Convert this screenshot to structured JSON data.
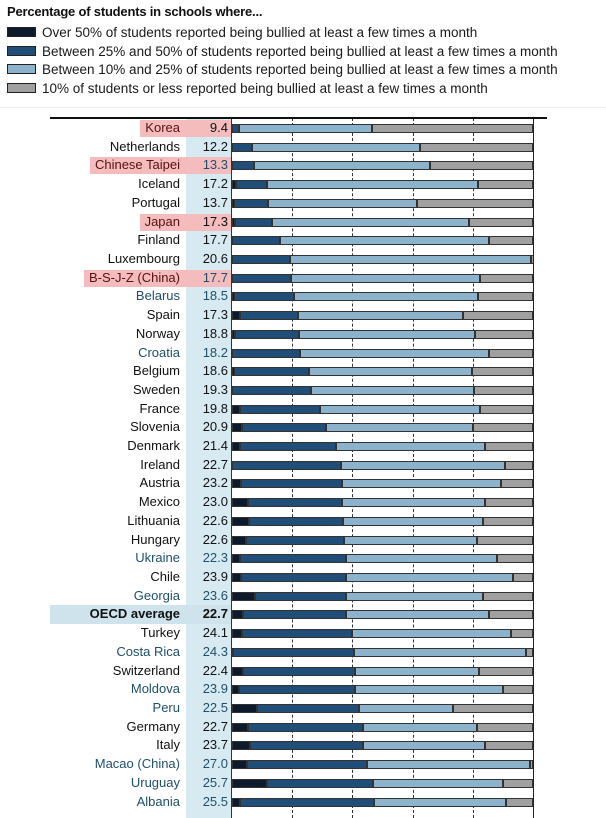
{
  "chart_data": {
    "type": "bar",
    "orientation": "horizontal",
    "stacked": true,
    "title": "Percentage of students in schools where...",
    "xlim": [
      0,
      100
    ],
    "grid": "vertical dashed at 20, 40, 60, 80",
    "legend_position": "top",
    "colors": {
      "over50": "#0c1a2c",
      "b25_50": "#214e78",
      "b10_25": "#8db2cb",
      "le10": "#a0a0a0"
    },
    "series_names": [
      "Over 50% of students reported being bullied at least a few times a month",
      "Between 25% and 50% of students reported being bullied at least a few times a month",
      "Between 10% and 25% of students reported being bullied at least a few times a month",
      "10% of students or less reported being bullied at least a few times a month"
    ],
    "rows": [
      {
        "label": "Korea",
        "value": "9.4",
        "highlight": "red",
        "partner": false,
        "segments": [
          0,
          2.2,
          44.2,
          53.6
        ]
      },
      {
        "label": "Netherlands",
        "value": "12.2",
        "highlight": "",
        "partner": false,
        "segments": [
          0,
          6.7,
          55.6,
          37.7
        ]
      },
      {
        "label": "Chinese Taipei",
        "value": "13.3",
        "highlight": "red",
        "partner": true,
        "segments": [
          0,
          7.4,
          58.3,
          34.3
        ]
      },
      {
        "label": "Iceland",
        "value": "17.2",
        "highlight": "",
        "partner": false,
        "segments": [
          1.2,
          10.5,
          69.9,
          18.4
        ]
      },
      {
        "label": "Portugal",
        "value": "13.7",
        "highlight": "",
        "partner": false,
        "segments": [
          0.7,
          11.4,
          49.5,
          38.4
        ]
      },
      {
        "label": "Japan",
        "value": "17.3",
        "highlight": "red",
        "partner": false,
        "segments": [
          1.1,
          12.1,
          65.6,
          21.2
        ]
      },
      {
        "label": "Finland",
        "value": "17.7",
        "highlight": "",
        "partner": false,
        "segments": [
          0,
          16.0,
          69.3,
          14.7
        ]
      },
      {
        "label": "Luxembourg",
        "value": "20.6",
        "highlight": "",
        "partner": false,
        "segments": [
          0,
          19.4,
          80.0,
          0.6
        ]
      },
      {
        "label": "B-S-J-Z (China)",
        "value": "17.7",
        "highlight": "red",
        "partner": true,
        "segments": [
          0,
          19.5,
          63.0,
          17.5
        ]
      },
      {
        "label": "Belarus",
        "value": "18.5",
        "highlight": "",
        "partner": true,
        "segments": [
          0.6,
          20.1,
          60.9,
          18.4
        ]
      },
      {
        "label": "Spain",
        "value": "17.3",
        "highlight": "",
        "partner": false,
        "segments": [
          2.8,
          19.0,
          54.8,
          23.4
        ]
      },
      {
        "label": "Norway",
        "value": "18.8",
        "highlight": "",
        "partner": false,
        "segments": [
          1.0,
          21.2,
          58.5,
          19.3
        ]
      },
      {
        "label": "Croatia",
        "value": "18.2",
        "highlight": "",
        "partner": true,
        "segments": [
          0,
          22.6,
          62.9,
          14.5
        ]
      },
      {
        "label": "Belgium",
        "value": "18.6",
        "highlight": "",
        "partner": false,
        "segments": [
          0.6,
          25.0,
          54.1,
          20.3
        ]
      },
      {
        "label": "Sweden",
        "value": "19.3",
        "highlight": "",
        "partner": false,
        "segments": [
          0,
          26.3,
          54.1,
          19.6
        ]
      },
      {
        "label": "France",
        "value": "19.8",
        "highlight": "",
        "partner": false,
        "segments": [
          2.6,
          26.7,
          53.2,
          17.5
        ]
      },
      {
        "label": "Slovenia",
        "value": "20.9",
        "highlight": "",
        "partner": false,
        "segments": [
          3.2,
          27.9,
          49.0,
          19.9
        ]
      },
      {
        "label": "Denmark",
        "value": "21.4",
        "highlight": "",
        "partner": false,
        "segments": [
          2.5,
          32.2,
          49.5,
          15.8
        ]
      },
      {
        "label": "Ireland",
        "value": "22.7",
        "highlight": "",
        "partner": false,
        "segments": [
          0,
          36.2,
          54.4,
          9.4
        ]
      },
      {
        "label": "Austria",
        "value": "23.2",
        "highlight": "",
        "partner": false,
        "segments": [
          2.9,
          33.7,
          52.9,
          10.5
        ]
      },
      {
        "label": "Mexico",
        "value": "23.0",
        "highlight": "",
        "partner": false,
        "segments": [
          5.3,
          31.4,
          47.5,
          15.8
        ]
      },
      {
        "label": "Lithuania",
        "value": "22.6",
        "highlight": "",
        "partner": false,
        "segments": [
          5.5,
          31.3,
          46.7,
          16.5
        ]
      },
      {
        "label": "Hungary",
        "value": "22.6",
        "highlight": "",
        "partner": false,
        "segments": [
          4.8,
          32.4,
          44.1,
          18.7
        ]
      },
      {
        "label": "Ukraine",
        "value": "22.3",
        "highlight": "",
        "partner": true,
        "segments": [
          2.6,
          35.3,
          50.3,
          11.8
        ]
      },
      {
        "label": "Chile",
        "value": "23.9",
        "highlight": "",
        "partner": false,
        "segments": [
          3.1,
          34.8,
          55.5,
          6.6
        ]
      },
      {
        "label": "Georgia",
        "value": "23.6",
        "highlight": "",
        "partner": true,
        "segments": [
          7.8,
          30.1,
          45.6,
          16.5
        ]
      },
      {
        "label": "OECD average",
        "value": "22.7",
        "highlight": "blue",
        "partner": false,
        "bold": true,
        "segments": [
          3.7,
          34.2,
          47.6,
          14.5
        ]
      },
      {
        "label": "Turkey",
        "value": "24.1",
        "highlight": "",
        "partner": false,
        "segments": [
          3.2,
          36.8,
          52.8,
          7.2
        ]
      },
      {
        "label": "Costa Rica",
        "value": "24.3",
        "highlight": "",
        "partner": true,
        "segments": [
          0.2,
          40.4,
          57.2,
          2.2
        ]
      },
      {
        "label": "Switzerland",
        "value": "22.4",
        "highlight": "",
        "partner": false,
        "segments": [
          3.8,
          37.1,
          41.3,
          17.8
        ]
      },
      {
        "label": "Moldova",
        "value": "23.9",
        "highlight": "",
        "partner": true,
        "segments": [
          2.3,
          38.7,
          49.1,
          9.9
        ]
      },
      {
        "label": "Peru",
        "value": "22.5",
        "highlight": "",
        "partner": true,
        "segments": [
          8.3,
          33.9,
          31.1,
          26.7
        ]
      },
      {
        "label": "Germany",
        "value": "22.7",
        "highlight": "",
        "partner": false,
        "segments": [
          5.4,
          38.0,
          37.9,
          18.7
        ]
      },
      {
        "label": "Italy",
        "value": "23.7",
        "highlight": "",
        "partner": false,
        "segments": [
          5.9,
          37.6,
          40.7,
          15.8
        ]
      },
      {
        "label": "Macao (China)",
        "value": "27.0",
        "highlight": "",
        "partner": true,
        "segments": [
          5.1,
          39.9,
          54.0,
          1.0
        ]
      },
      {
        "label": "Uruguay",
        "value": "25.7",
        "highlight": "",
        "partner": true,
        "segments": [
          11.7,
          35.0,
          43.4,
          9.9
        ]
      },
      {
        "label": "Albania",
        "value": "25.5",
        "highlight": "",
        "partner": true,
        "segments": [
          2.6,
          44.6,
          43.9,
          8.9
        ]
      }
    ]
  }
}
